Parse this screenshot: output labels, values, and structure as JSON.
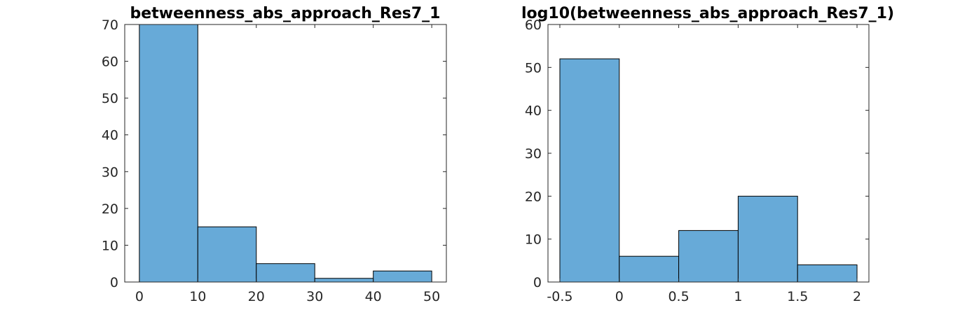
{
  "colors": {
    "bar_fill": "#67aad8",
    "bar_edge": "#000000",
    "axis": "#262626"
  },
  "chart_data": [
    {
      "type": "bar",
      "title": "betweenness_abs_approach_Res7_1",
      "xlabel": "",
      "ylabel": "",
      "bin_edges": [
        0,
        10,
        20,
        30,
        40,
        50
      ],
      "values": [
        70,
        15,
        5,
        1,
        3
      ],
      "xlim": [
        -2.5,
        52.5
      ],
      "ylim": [
        0,
        70
      ],
      "xticks": [
        0,
        10,
        20,
        30,
        40,
        50
      ],
      "xtick_labels": [
        "0",
        "10",
        "20",
        "30",
        "40",
        "50"
      ],
      "yticks": [
        0,
        10,
        20,
        30,
        40,
        50,
        60,
        70
      ],
      "ytick_labels": [
        "0",
        "10",
        "20",
        "30",
        "40",
        "50",
        "60",
        "70"
      ],
      "grid": false,
      "legend": "none"
    },
    {
      "type": "bar",
      "title": "log10(betweenness_abs_approach_Res7_1)",
      "xlabel": "",
      "ylabel": "",
      "bin_edges": [
        -0.5,
        0,
        0.5,
        1,
        1.5,
        2
      ],
      "values": [
        52,
        6,
        12,
        20,
        4
      ],
      "xlim": [
        -0.6,
        2.1
      ],
      "ylim": [
        0,
        60
      ],
      "xticks": [
        -0.5,
        0,
        0.5,
        1,
        1.5,
        2
      ],
      "xtick_labels": [
        "-0.5",
        "0",
        "0.5",
        "1",
        "1.5",
        "2"
      ],
      "yticks": [
        0,
        10,
        20,
        30,
        40,
        50,
        60
      ],
      "ytick_labels": [
        "0",
        "10",
        "20",
        "30",
        "40",
        "50",
        "60"
      ],
      "grid": false,
      "legend": "none"
    }
  ]
}
